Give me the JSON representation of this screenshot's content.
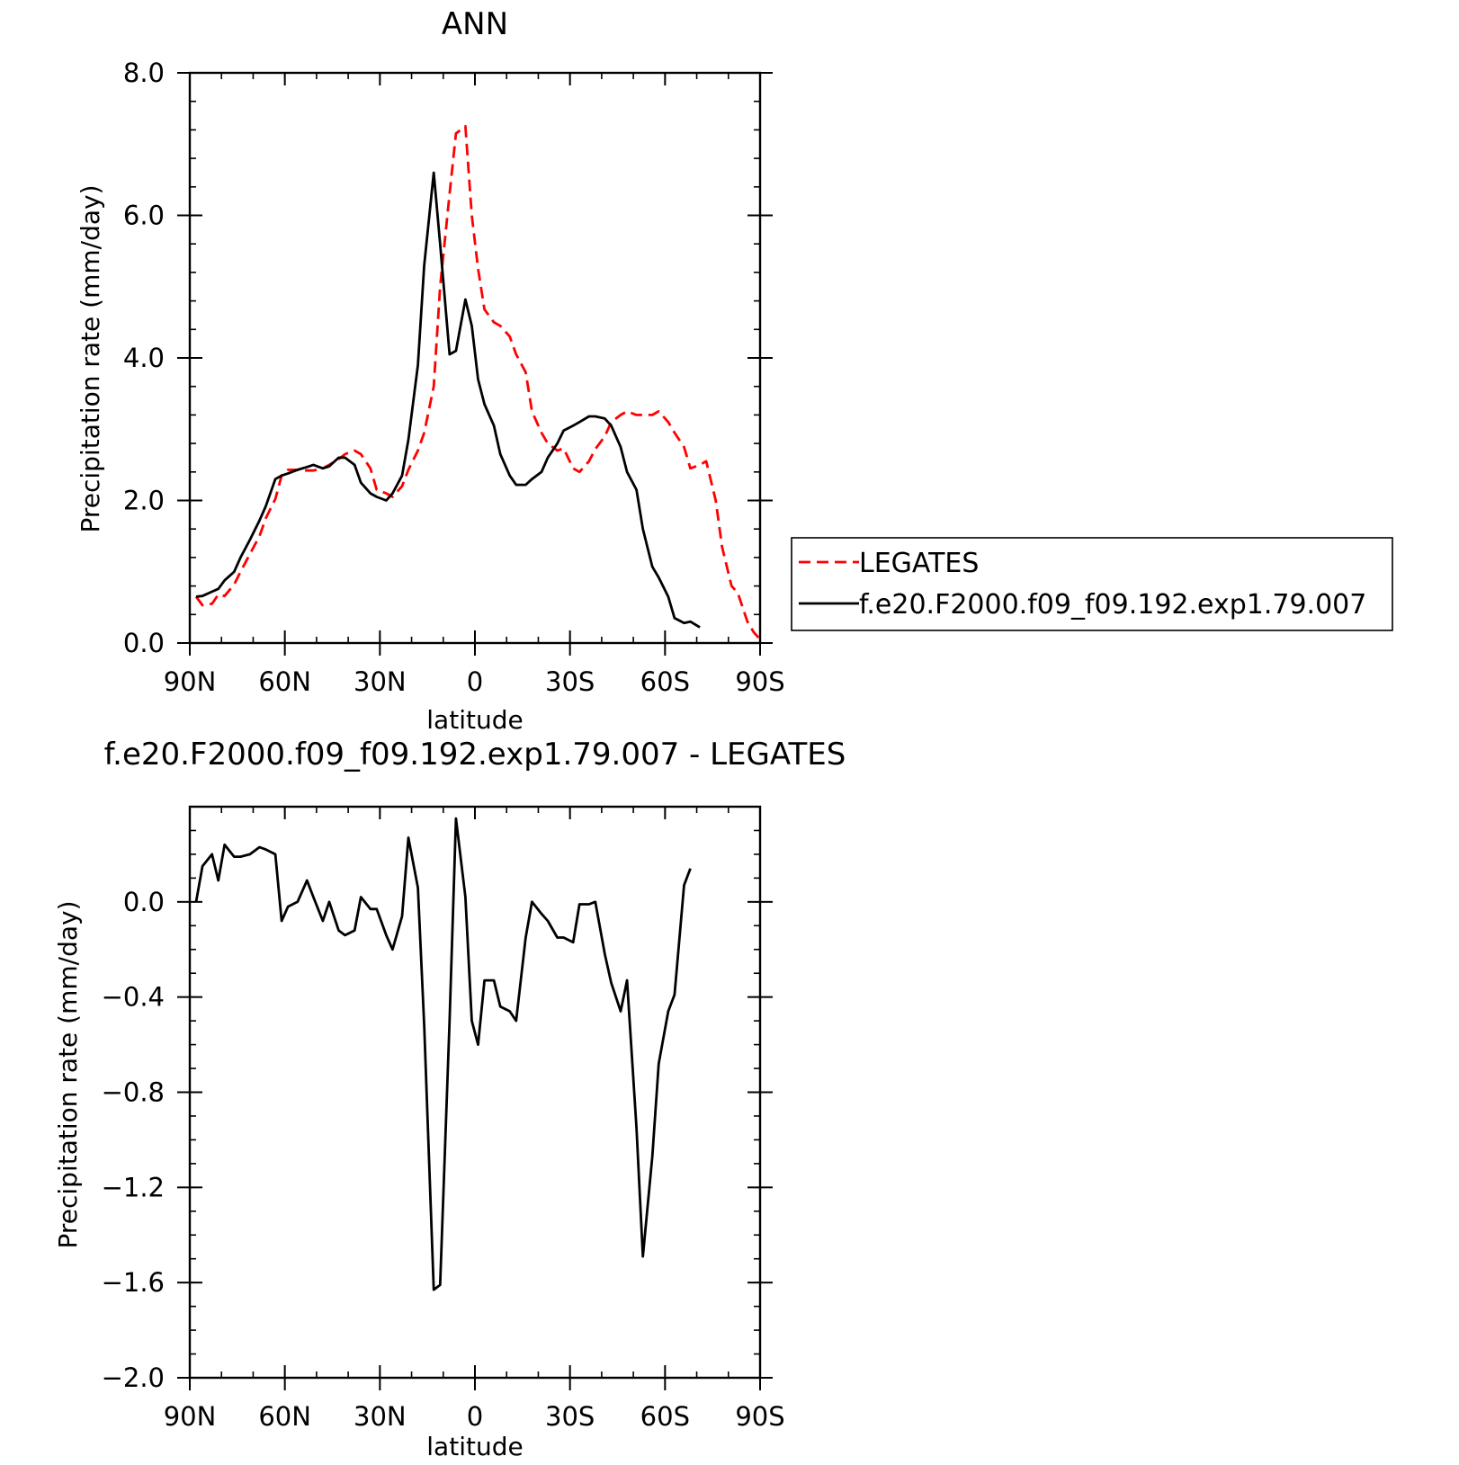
{
  "chart_data": [
    {
      "type": "line",
      "title": "ANN",
      "xlabel": "latitude",
      "ylabel": "Precipitation rate (mm/day)",
      "xlim": [
        90,
        -90
      ],
      "ylim": [
        0,
        8
      ],
      "x_ticks": [
        {
          "value": 90,
          "label": "90N"
        },
        {
          "value": 60,
          "label": "60N"
        },
        {
          "value": 30,
          "label": "30N"
        },
        {
          "value": 0,
          "label": "0"
        },
        {
          "value": -30,
          "label": "30S"
        },
        {
          "value": -60,
          "label": "60S"
        },
        {
          "value": -90,
          "label": "90S"
        }
      ],
      "y_ticks": [
        {
          "value": 0,
          "label": "0.0"
        },
        {
          "value": 2,
          "label": "2.0"
        },
        {
          "value": 4,
          "label": "4.0"
        },
        {
          "value": 6,
          "label": "6.0"
        },
        {
          "value": 8,
          "label": "8.0"
        }
      ],
      "legend_placement": "right",
      "series": [
        {
          "name": "LEGATES",
          "color": "#ff0000",
          "dash": "dashed",
          "points": [
            [
              88,
              0.65
            ],
            [
              86,
              0.53
            ],
            [
              83,
              0.55
            ],
            [
              81,
              0.68
            ],
            [
              79,
              0.66
            ],
            [
              76,
              0.82
            ],
            [
              74,
              1.0
            ],
            [
              71,
              1.25
            ],
            [
              68,
              1.5
            ],
            [
              66,
              1.75
            ],
            [
              63,
              2.02
            ],
            [
              61,
              2.35
            ],
            [
              59,
              2.43
            ],
            [
              56,
              2.43
            ],
            [
              53,
              2.42
            ],
            [
              51,
              2.42
            ],
            [
              48,
              2.45
            ],
            [
              46,
              2.5
            ],
            [
              43,
              2.58
            ],
            [
              41,
              2.65
            ],
            [
              38,
              2.7
            ],
            [
              36,
              2.65
            ],
            [
              33,
              2.45
            ],
            [
              31,
              2.15
            ],
            [
              28,
              2.1
            ],
            [
              26,
              2.05
            ],
            [
              23,
              2.2
            ],
            [
              21,
              2.43
            ],
            [
              18,
              2.7
            ],
            [
              16,
              2.95
            ],
            [
              13,
              3.6
            ],
            [
              11,
              5.0
            ],
            [
              8,
              6.3
            ],
            [
              6,
              7.15
            ],
            [
              3,
              7.25
            ],
            [
              1,
              6.0
            ],
            [
              -1,
              5.25
            ],
            [
              -3,
              4.68
            ],
            [
              -6,
              4.5
            ],
            [
              -8,
              4.45
            ],
            [
              -11,
              4.3
            ],
            [
              -13,
              4.05
            ],
            [
              -16,
              3.8
            ],
            [
              -18,
              3.25
            ],
            [
              -21,
              2.95
            ],
            [
              -23,
              2.8
            ],
            [
              -26,
              2.7
            ],
            [
              -28,
              2.73
            ],
            [
              -31,
              2.45
            ],
            [
              -33,
              2.4
            ],
            [
              -36,
              2.55
            ],
            [
              -38,
              2.72
            ],
            [
              -41,
              2.9
            ],
            [
              -43,
              3.1
            ],
            [
              -46,
              3.2
            ],
            [
              -48,
              3.25
            ],
            [
              -51,
              3.2
            ],
            [
              -53,
              3.2
            ],
            [
              -56,
              3.2
            ],
            [
              -58,
              3.25
            ],
            [
              -61,
              3.1
            ],
            [
              -63,
              2.95
            ],
            [
              -66,
              2.75
            ],
            [
              -68,
              2.45
            ],
            [
              -71,
              2.5
            ],
            [
              -73,
              2.55
            ],
            [
              -76,
              2.0
            ],
            [
              -78,
              1.35
            ],
            [
              -81,
              0.8
            ],
            [
              -83,
              0.7
            ],
            [
              -86,
              0.3
            ],
            [
              -88,
              0.15
            ],
            [
              -90,
              0.05
            ]
          ]
        },
        {
          "name": "f.e20.F2000.f09_f09.192.exp1.79.007",
          "color": "#000000",
          "dash": "solid",
          "points": [
            [
              88,
              0.65
            ],
            [
              86,
              0.66
            ],
            [
              83,
              0.72
            ],
            [
              81,
              0.76
            ],
            [
              79,
              0.88
            ],
            [
              76,
              1.0
            ],
            [
              74,
              1.2
            ],
            [
              71,
              1.45
            ],
            [
              68,
              1.72
            ],
            [
              66,
              1.92
            ],
            [
              63,
              2.3
            ],
            [
              61,
              2.35
            ],
            [
              59,
              2.38
            ],
            [
              56,
              2.43
            ],
            [
              53,
              2.47
            ],
            [
              51,
              2.5
            ],
            [
              48,
              2.45
            ],
            [
              46,
              2.48
            ],
            [
              43,
              2.6
            ],
            [
              41,
              2.6
            ],
            [
              38,
              2.5
            ],
            [
              36,
              2.25
            ],
            [
              33,
              2.1
            ],
            [
              31,
              2.05
            ],
            [
              28,
              2.0
            ],
            [
              26,
              2.1
            ],
            [
              23,
              2.35
            ],
            [
              21,
              2.85
            ],
            [
              18,
              3.9
            ],
            [
              16,
              5.3
            ],
            [
              13,
              6.6
            ],
            [
              11,
              5.6
            ],
            [
              8,
              4.05
            ],
            [
              6,
              4.1
            ],
            [
              3,
              4.82
            ],
            [
              1,
              4.45
            ],
            [
              -1,
              3.7
            ],
            [
              -3,
              3.35
            ],
            [
              -6,
              3.05
            ],
            [
              -8,
              2.65
            ],
            [
              -11,
              2.35
            ],
            [
              -13,
              2.22
            ],
            [
              -16,
              2.22
            ],
            [
              -18,
              2.3
            ],
            [
              -21,
              2.4
            ],
            [
              -23,
              2.6
            ],
            [
              -26,
              2.8
            ],
            [
              -28,
              2.98
            ],
            [
              -31,
              3.05
            ],
            [
              -33,
              3.1
            ],
            [
              -36,
              3.18
            ],
            [
              -38,
              3.18
            ],
            [
              -41,
              3.15
            ],
            [
              -43,
              3.05
            ],
            [
              -46,
              2.75
            ],
            [
              -48,
              2.4
            ],
            [
              -51,
              2.15
            ],
            [
              -53,
              1.6
            ],
            [
              -56,
              1.07
            ],
            [
              -58,
              0.92
            ],
            [
              -61,
              0.65
            ],
            [
              -63,
              0.35
            ],
            [
              -66,
              0.28
            ],
            [
              -68,
              0.3
            ],
            [
              -71,
              0.22
            ]
          ]
        }
      ]
    },
    {
      "type": "line",
      "title": "f.e20.F2000.f09_f09.192.exp1.79.007 - LEGATES",
      "xlabel": "latitude",
      "ylabel": "Precipitation rate (mm/day)",
      "xlim": [
        90,
        -90
      ],
      "ylim": [
        -2.0,
        0.4
      ],
      "x_ticks": [
        {
          "value": 90,
          "label": "90N"
        },
        {
          "value": 60,
          "label": "60N"
        },
        {
          "value": 30,
          "label": "30N"
        },
        {
          "value": 0,
          "label": "0"
        },
        {
          "value": -30,
          "label": "30S"
        },
        {
          "value": -60,
          "label": "60S"
        },
        {
          "value": -90,
          "label": "90S"
        }
      ],
      "y_ticks": [
        {
          "value": 0.0,
          "label": "0.0"
        },
        {
          "value": -0.4,
          "label": "−0.4"
        },
        {
          "value": -0.8,
          "label": "−0.8"
        },
        {
          "value": -1.2,
          "label": "−1.2"
        },
        {
          "value": -1.6,
          "label": "−1.6"
        },
        {
          "value": -2.0,
          "label": "−2.0"
        }
      ],
      "series": [
        {
          "color": "#000000",
          "dash": "solid",
          "points": [
            [
              88,
              0.0
            ],
            [
              86,
              0.15
            ],
            [
              83,
              0.2
            ],
            [
              81,
              0.09
            ],
            [
              79,
              0.24
            ],
            [
              76,
              0.19
            ],
            [
              74,
              0.19
            ],
            [
              71,
              0.2
            ],
            [
              68,
              0.23
            ],
            [
              66,
              0.22
            ],
            [
              63,
              0.2
            ],
            [
              61,
              -0.08
            ],
            [
              59,
              -0.02
            ],
            [
              56,
              0.0
            ],
            [
              53,
              0.09
            ],
            [
              51,
              0.02
            ],
            [
              48,
              -0.08
            ],
            [
              46,
              0.0
            ],
            [
              43,
              -0.12
            ],
            [
              41,
              -0.14
            ],
            [
              38,
              -0.12
            ],
            [
              36,
              0.02
            ],
            [
              33,
              -0.03
            ],
            [
              31,
              -0.03
            ],
            [
              28,
              -0.14
            ],
            [
              26,
              -0.2
            ],
            [
              23,
              -0.06
            ],
            [
              21,
              0.27
            ],
            [
              18,
              0.06
            ],
            [
              16,
              -0.52
            ],
            [
              13,
              -1.63
            ],
            [
              11,
              -1.61
            ],
            [
              8,
              -0.5
            ],
            [
              6,
              0.35
            ],
            [
              3,
              0.02
            ],
            [
              1,
              -0.5
            ],
            [
              -1,
              -0.6
            ],
            [
              -3,
              -0.33
            ],
            [
              -6,
              -0.33
            ],
            [
              -8,
              -0.44
            ],
            [
              -11,
              -0.46
            ],
            [
              -13,
              -0.5
            ],
            [
              -16,
              -0.15
            ],
            [
              -18,
              0.0
            ],
            [
              -21,
              -0.05
            ],
            [
              -23,
              -0.08
            ],
            [
              -26,
              -0.15
            ],
            [
              -28,
              -0.15
            ],
            [
              -31,
              -0.17
            ],
            [
              -33,
              -0.01
            ],
            [
              -36,
              -0.01
            ],
            [
              -38,
              0.0
            ],
            [
              -41,
              -0.22
            ],
            [
              -43,
              -0.34
            ],
            [
              -46,
              -0.46
            ],
            [
              -48,
              -0.33
            ],
            [
              -51,
              -0.95
            ],
            [
              -53,
              -1.49
            ],
            [
              -56,
              -1.07
            ],
            [
              -58,
              -0.68
            ],
            [
              -61,
              -0.46
            ],
            [
              -63,
              -0.39
            ],
            [
              -66,
              0.07
            ],
            [
              -68,
              0.14
            ]
          ]
        }
      ]
    }
  ]
}
